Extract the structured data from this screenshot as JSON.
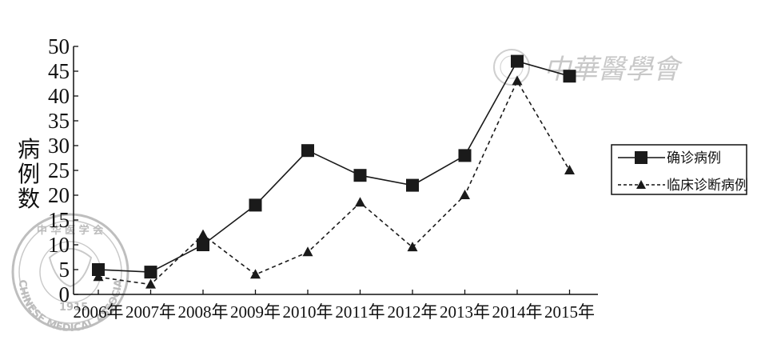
{
  "chart_data": {
    "type": "line",
    "categories": [
      "2006年",
      "2007年",
      "2008年",
      "2009年",
      "2010年",
      "2011年",
      "2012年",
      "2013年",
      "2014年",
      "2015年"
    ],
    "series": [
      {
        "name": "确诊病例",
        "marker": "square",
        "line": "solid",
        "values": [
          5,
          4.5,
          10,
          18,
          29,
          24,
          22,
          28,
          47,
          44
        ]
      },
      {
        "name": "临床诊断病例",
        "marker": "triangle",
        "line": "dashed",
        "values": [
          3.5,
          2,
          12,
          4,
          8.5,
          18.5,
          9.5,
          20,
          43,
          25
        ]
      }
    ],
    "ylabel": "病例数",
    "ylim": [
      0,
      50
    ],
    "yticks": [
      0,
      5,
      10,
      15,
      20,
      25,
      30,
      35,
      40,
      45,
      50
    ],
    "grid": false,
    "legend": "right",
    "colors": {
      "line": "#1a1a1a",
      "watermark": "#c8c8c8"
    }
  },
  "watermark": {
    "text": "中華醫學會"
  },
  "seal": {
    "top_text": "中 华 医 学 会",
    "bottom_text": "CHINESE MEDICAL ASSOCIATION",
    "year": "1915"
  }
}
